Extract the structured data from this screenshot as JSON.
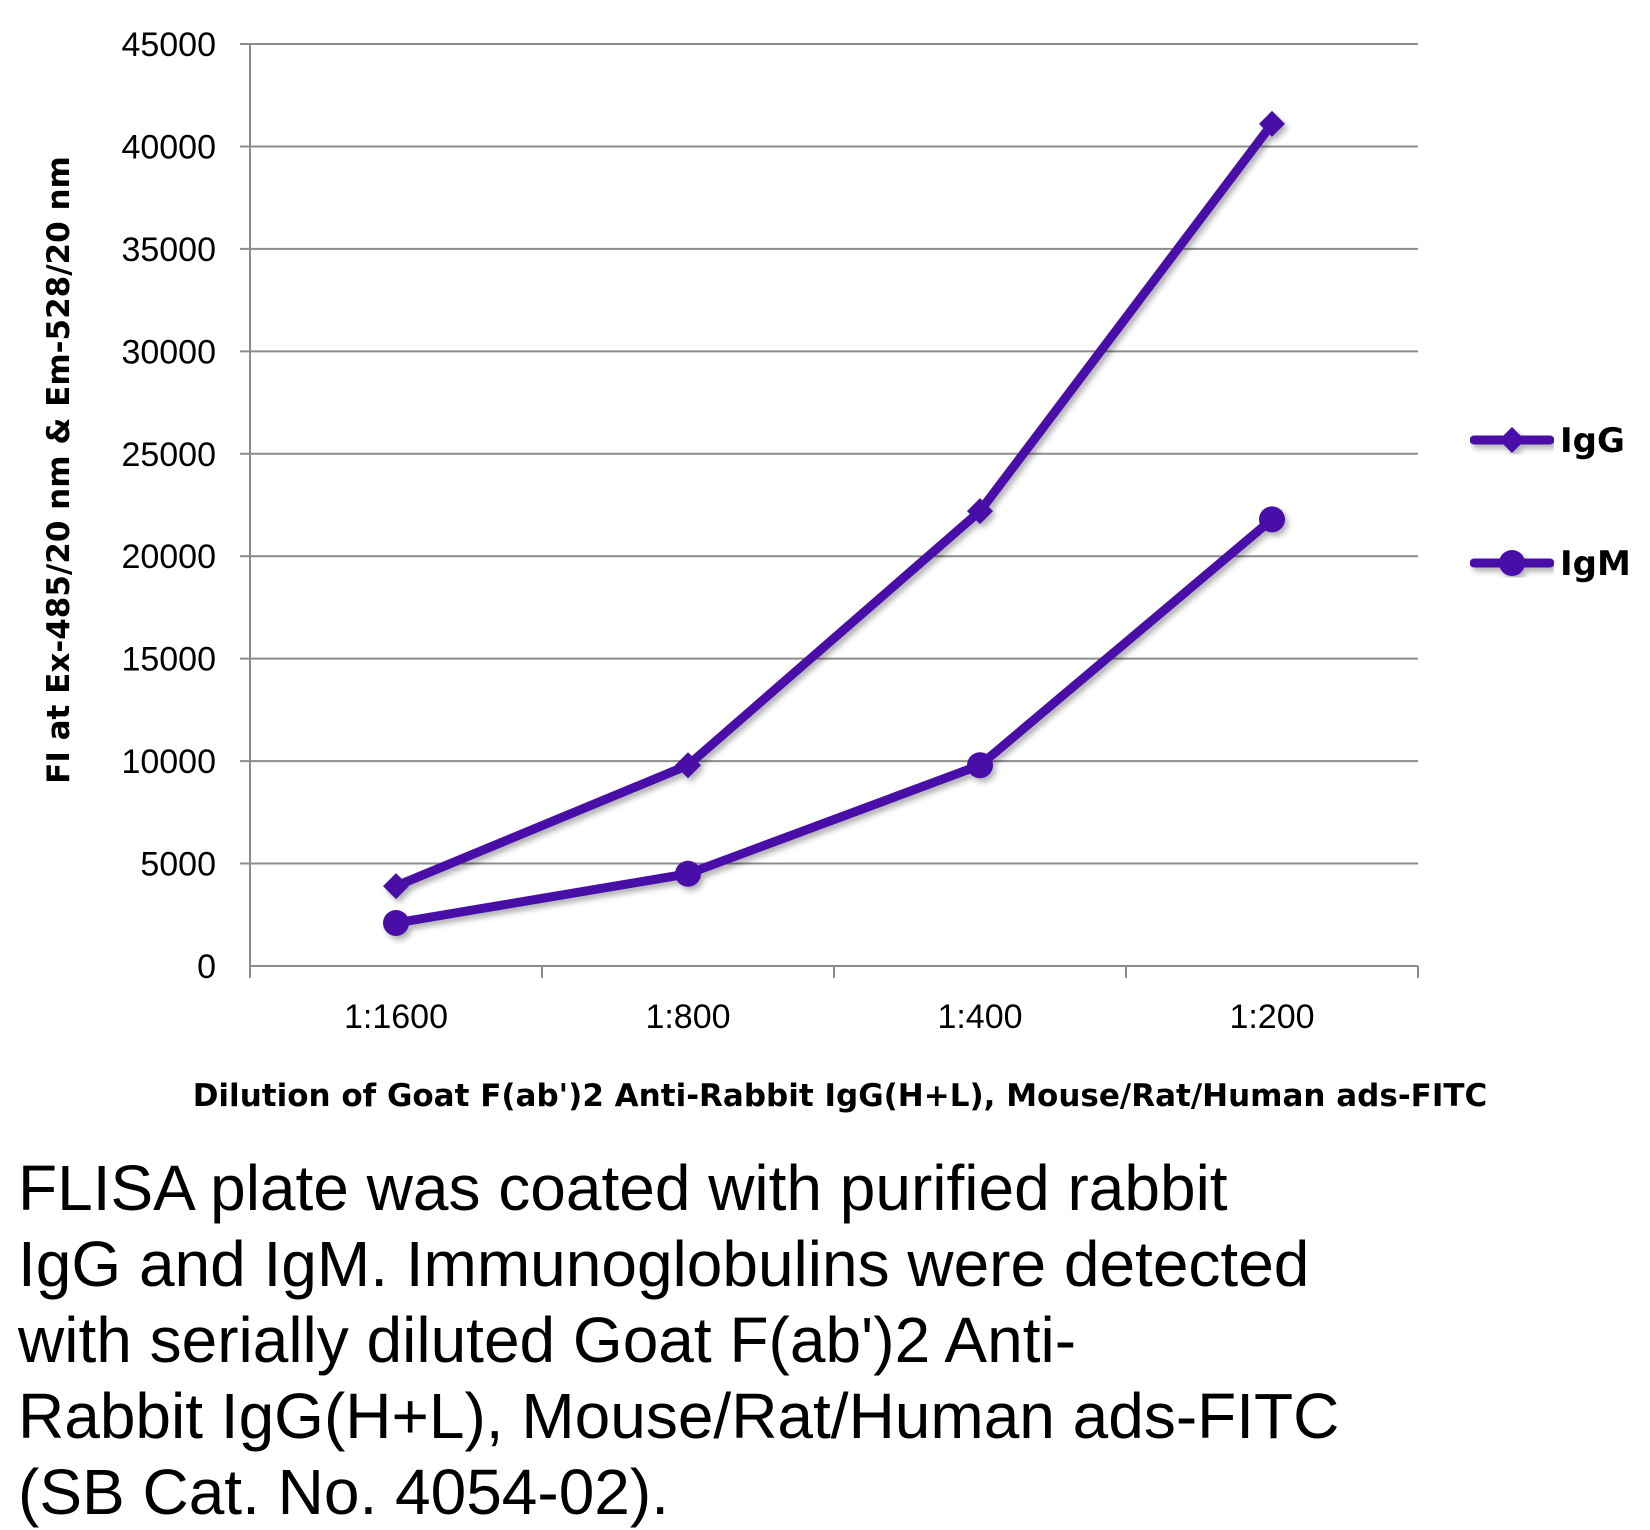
{
  "chart_data": {
    "type": "line",
    "title": "",
    "categories": [
      "1:1600",
      "1:800",
      "1:400",
      "1:200"
    ],
    "series": [
      {
        "name": "IgG",
        "marker": "diamond",
        "color": "#4a0aa8",
        "values": [
          3900,
          9800,
          22200,
          41100
        ]
      },
      {
        "name": "IgM",
        "marker": "circle",
        "color": "#4a0aa8",
        "values": [
          2100,
          4500,
          9800,
          21800
        ]
      }
    ],
    "xlabel": "Dilution of Goat F(ab')2  Anti-Rabbit IgG(H+L), Mouse/Rat/Human ads-FITC",
    "ylabel": "FI at Ex-485/20 nm & Em-528/20 nm",
    "ylim": [
      0,
      45000
    ],
    "yticks": [
      "0",
      "5000",
      "10000",
      "15000",
      "20000",
      "25000",
      "30000",
      "35000",
      "40000",
      "45000"
    ],
    "grid": true,
    "legend": "right"
  },
  "caption": "FLISA plate was coated with purified rabbit\nIgG and IgM.  Immunoglobulins were detected\nwith serially diluted Goat F(ab')2 Anti-\nRabbit IgG(H+L), Mouse/Rat/Human ads-FITC\n(SB Cat. No. 4054-02)."
}
